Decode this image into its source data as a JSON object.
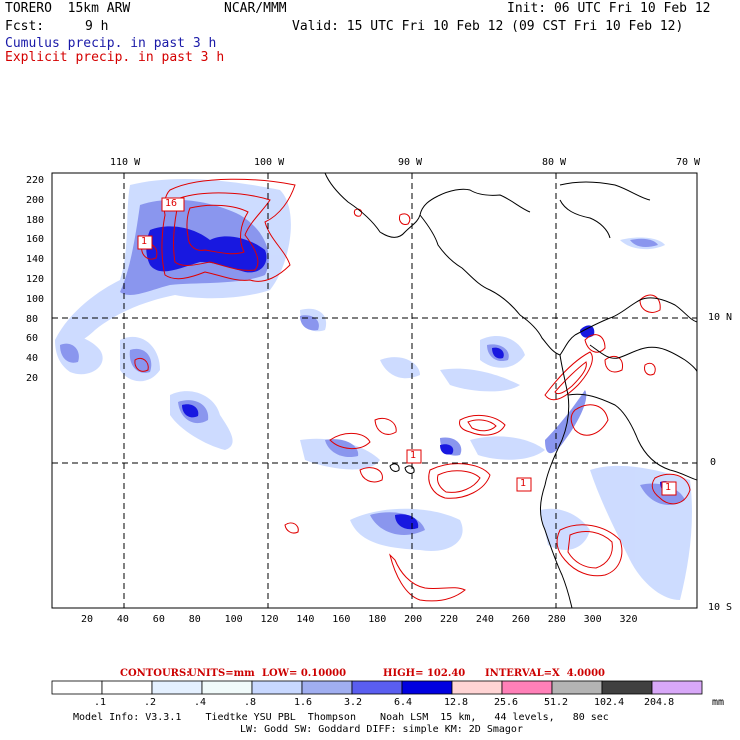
{
  "header": {
    "model": "TORERO  15km ARW",
    "center": "NCAR/MMM",
    "init": "Init: 06 UTC Fri 10 Feb 12",
    "fcst_label": "Fcst:",
    "fcst_hours": "9 h",
    "valid": "Valid: 15 UTC Fri 10 Feb 12 (09 CST Fri 10 Feb 12)",
    "field1": "Cumulus precip. in past 3 h",
    "field2": "Explicit precip. in past 3 h",
    "field1_color": "#1a1aa8",
    "field2_color": "#d40000"
  },
  "map": {
    "lon_labels": [
      "110 W",
      "100 W",
      "90 W",
      "80 W",
      "70 W"
    ],
    "lat_labels": [
      "10 N",
      "0",
      "10 S"
    ],
    "y_ticks": [
      "220",
      "200",
      "180",
      "160",
      "140",
      "120",
      "100",
      "80",
      "60",
      "40",
      "20"
    ],
    "x_ticks": [
      "20",
      "40",
      "60",
      "80",
      "100",
      "120",
      "140",
      "160",
      "180",
      "200",
      "220",
      "240",
      "260",
      "280",
      "300",
      "320"
    ],
    "contour_box_labels": [
      "16",
      "1",
      "1",
      "1",
      "1"
    ],
    "coast_color": "#000000",
    "contour_color": "#e00000"
  },
  "contours_info": {
    "label": "CONTOURS:",
    "units": "UNITS=mm",
    "low": "LOW= 0.10000",
    "high": "HIGH= 102.40",
    "interval": "INTERVAL=X  4.0000"
  },
  "colorbar": {
    "labels": [
      ".1",
      ".2",
      ".4",
      ".8",
      "1.6",
      "3.2",
      "6.4",
      "12.8",
      "25.6",
      "51.2",
      "102.4",
      "204.8"
    ],
    "colors": [
      "#ffffff",
      "#ffffff",
      "#e4f0ff",
      "#f0fafa",
      "#c8d8ff",
      "#a0aef0",
      "#5a5ef0",
      "#0000e0",
      "#ffd4d4",
      "#ff80b8",
      "#b4b4b4",
      "#404040",
      "#d8a8f8"
    ],
    "unit": "mm"
  },
  "footer": {
    "line1": "Model Info: V3.3.1    Tiedtke YSU PBL  Thompson    Noah LSM  15 km,   44 levels,   80 sec",
    "line2": "LW: Godd SW: Goddard DIFF: simple KM: 2D Smagor"
  }
}
